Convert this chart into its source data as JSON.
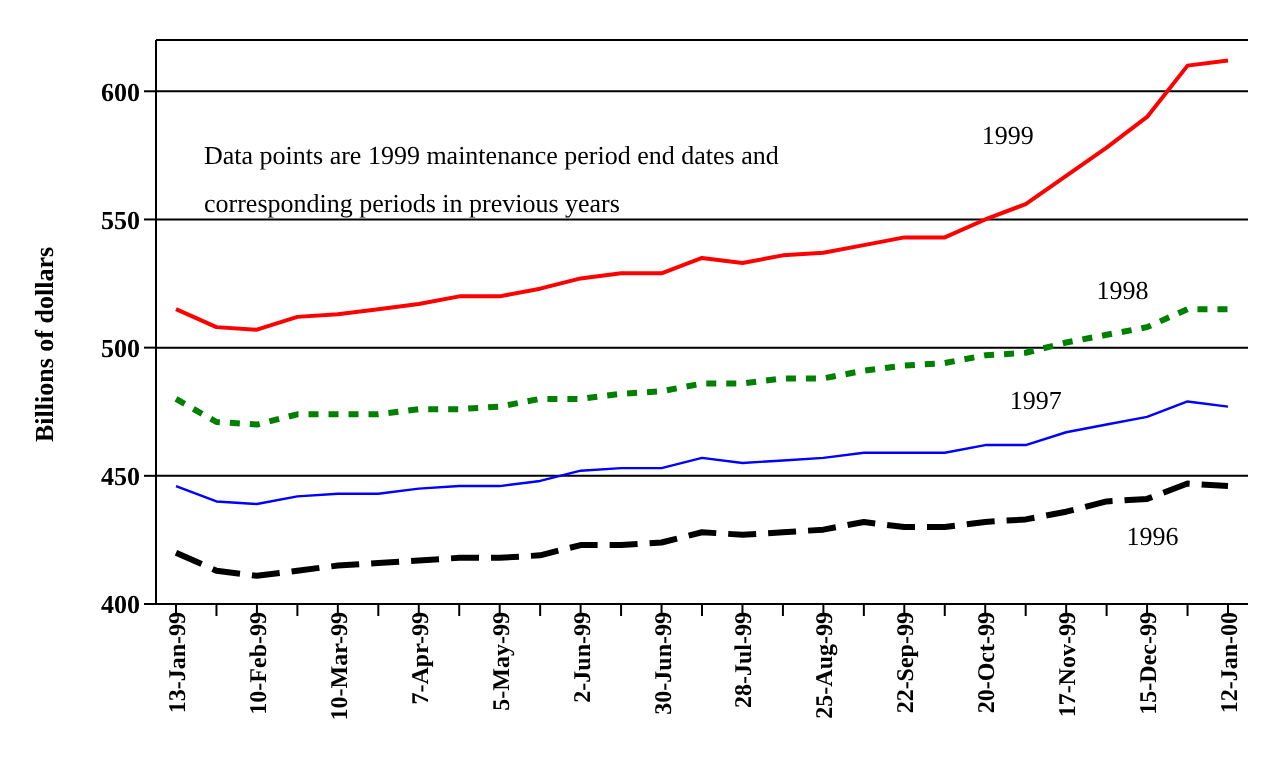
{
  "chart_data": {
    "type": "line",
    "ylabel": "Billions of dollars",
    "categories": [
      "13-Jan-99",
      null,
      "10-Feb-99",
      null,
      "10-Mar-99",
      null,
      "7-Apr-99",
      null,
      "5-May-99",
      null,
      "2-Jun-99",
      null,
      "30-Jun-99",
      null,
      "28-Jul-99",
      null,
      "25-Aug-99",
      null,
      "22-Sep-99",
      null,
      "20-Oct-99",
      null,
      "17-Nov-99",
      null,
      "15-Dec-99",
      null,
      "12-Jan-00"
    ],
    "series": [
      {
        "name": "1999",
        "color": "#ff0000",
        "line_style": "solid",
        "values": [
          515,
          508,
          507,
          512,
          513,
          515,
          517,
          520,
          520,
          523,
          527,
          529,
          529,
          535,
          533,
          536,
          537,
          540,
          543,
          543,
          550,
          556,
          567,
          578,
          590,
          610,
          612
        ]
      },
      {
        "name": "1998",
        "color": "#008000",
        "line_style": "dotted",
        "values": [
          480,
          471,
          470,
          474,
          474,
          474,
          476,
          476,
          477,
          480,
          480,
          482,
          483,
          486,
          486,
          488,
          488,
          491,
          493,
          494,
          497,
          498,
          502,
          505,
          508,
          515,
          515
        ]
      },
      {
        "name": "1997",
        "color": "#0000ff",
        "line_style": "solid",
        "values": [
          446,
          440,
          439,
          442,
          443,
          443,
          445,
          446,
          446,
          448,
          452,
          453,
          453,
          457,
          455,
          456,
          457,
          459,
          459,
          459,
          462,
          462,
          467,
          470,
          473,
          479,
          477
        ]
      },
      {
        "name": "1996",
        "color": "#000000",
        "line_style": "dashed",
        "values": [
          420,
          413,
          411,
          413,
          415,
          416,
          417,
          418,
          418,
          419,
          423,
          423,
          424,
          428,
          427,
          428,
          429,
          432,
          430,
          430,
          432,
          433,
          436,
          440,
          441,
          447,
          446
        ]
      }
    ],
    "ylim": [
      400,
      620
    ],
    "yticks": [
      400,
      450,
      500,
      550,
      600
    ],
    "grid": "y",
    "legend": false,
    "marker": "none",
    "annotations": [
      "Data points are 1999 maintenance period end dates and corresponding periods in previous years"
    ]
  }
}
